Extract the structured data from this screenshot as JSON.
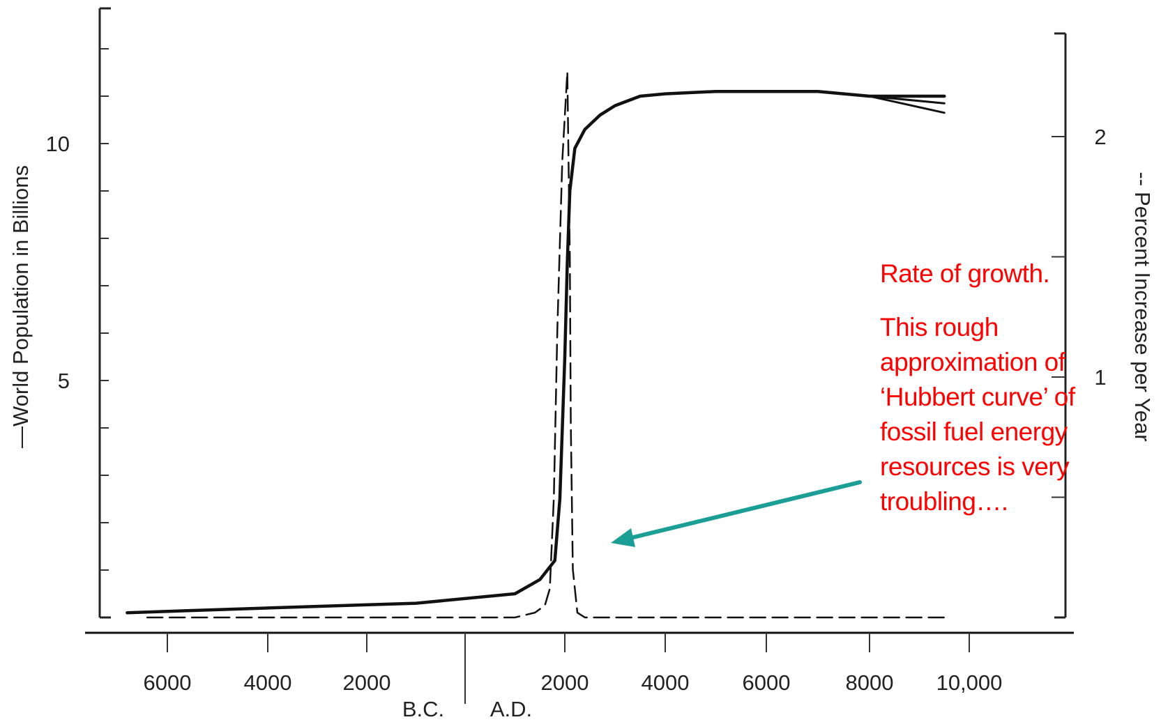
{
  "chart_data": {
    "type": "line",
    "x_tick_labels": [
      "6000",
      "4000",
      "2000",
      "2000",
      "4000",
      "6000",
      "8000",
      "10,000"
    ],
    "era_labels": {
      "left": "B.C.",
      "right": "A.D."
    },
    "ylabel": "World Population in Billions",
    "ylabel_marker": "—",
    "y_tick_labels": [
      "10",
      "5"
    ],
    "y_range": [
      0,
      13
    ],
    "y2label": "Percent Increase per Year",
    "y2label_marker": "--",
    "y2_tick_labels": [
      "2",
      "1"
    ],
    "y2_range": [
      0,
      2.6
    ],
    "series": [
      {
        "style": "solid",
        "axis": "left",
        "x": [
          -6800,
          -4000,
          -1000,
          1000,
          1500,
          1800,
          1900,
          2000,
          2050,
          2100,
          2200,
          2400,
          2700,
          3000,
          3500,
          4000,
          5000,
          6000,
          7000,
          8000,
          9500
        ],
        "y": [
          0.1,
          0.2,
          0.3,
          0.5,
          0.8,
          1.2,
          2.5,
          5.5,
          7.5,
          9.0,
          9.9,
          10.3,
          10.6,
          10.8,
          11.0,
          11.05,
          11.1,
          11.1,
          11.1,
          11.0,
          11.0
        ]
      },
      {
        "style": "solid",
        "axis": "left",
        "x": [
          8000,
          9500
        ],
        "y": [
          11.0,
          10.85
        ]
      },
      {
        "style": "solid",
        "axis": "left",
        "x": [
          8000,
          9500
        ],
        "y": [
          11.0,
          10.65
        ]
      },
      {
        "style": "dashed",
        "axis": "right",
        "x": [
          -6400,
          -2000,
          1000,
          1400,
          1600,
          1700,
          1780,
          1850,
          1950,
          2050,
          2100,
          2120,
          2160,
          2250,
          2400,
          4000,
          9500
        ],
        "y": [
          0.0,
          0.0,
          0.0,
          0.02,
          0.05,
          0.12,
          0.5,
          1.2,
          1.9,
          2.27,
          1.5,
          0.8,
          0.2,
          0.02,
          0.0,
          0.0,
          0.0
        ]
      }
    ]
  },
  "annotation": {
    "title": "Rate of growth.",
    "body": "This rough approximation of ‘Hubbert curve’ of fossil fuel energy resources is very troubling….",
    "text_color": "#ff0000",
    "arrow_color": "#1a9e96"
  }
}
